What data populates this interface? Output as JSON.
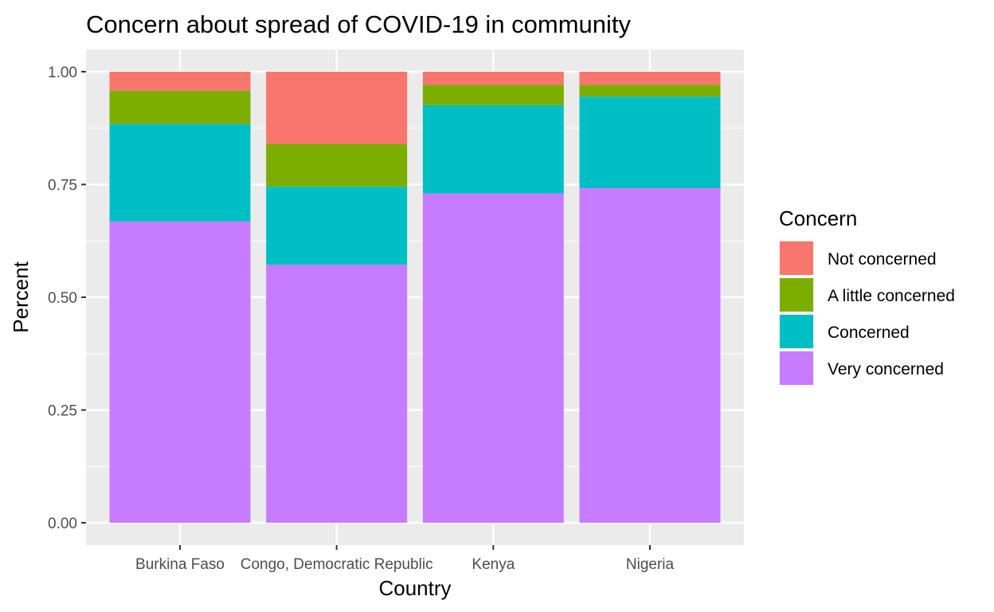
{
  "chart_data": {
    "type": "bar",
    "stacked": true,
    "title": "Concern about spread of COVID-19 in community",
    "xlabel": "Country",
    "ylabel": "Percent",
    "ylim": [
      0,
      1.04
    ],
    "yticks": [
      "0.00",
      "0.25",
      "0.50",
      "0.75",
      "1.00"
    ],
    "ytick_values": [
      0,
      0.25,
      0.5,
      0.75,
      1.0
    ],
    "grid": true,
    "legend_title": "Concern",
    "legend_position": "right",
    "categories": [
      "Burkina Faso",
      "Congo, Democratic Republic",
      "Kenya",
      "Nigeria"
    ],
    "series": [
      {
        "name": "Very concerned",
        "color": "#C77CFF",
        "values": [
          0.668,
          0.572,
          0.73,
          0.742
        ]
      },
      {
        "name": "Concerned",
        "color": "#00BFC4",
        "values": [
          0.216,
          0.173,
          0.196,
          0.203
        ]
      },
      {
        "name": "A little concerned",
        "color": "#7CAE00",
        "values": [
          0.074,
          0.095,
          0.045,
          0.026
        ]
      },
      {
        "name": "Not concerned",
        "color": "#F8766D",
        "values": [
          0.042,
          0.16,
          0.029,
          0.029
        ]
      }
    ],
    "legend_order": [
      "Not concerned",
      "A little concerned",
      "Concerned",
      "Very concerned"
    ]
  }
}
